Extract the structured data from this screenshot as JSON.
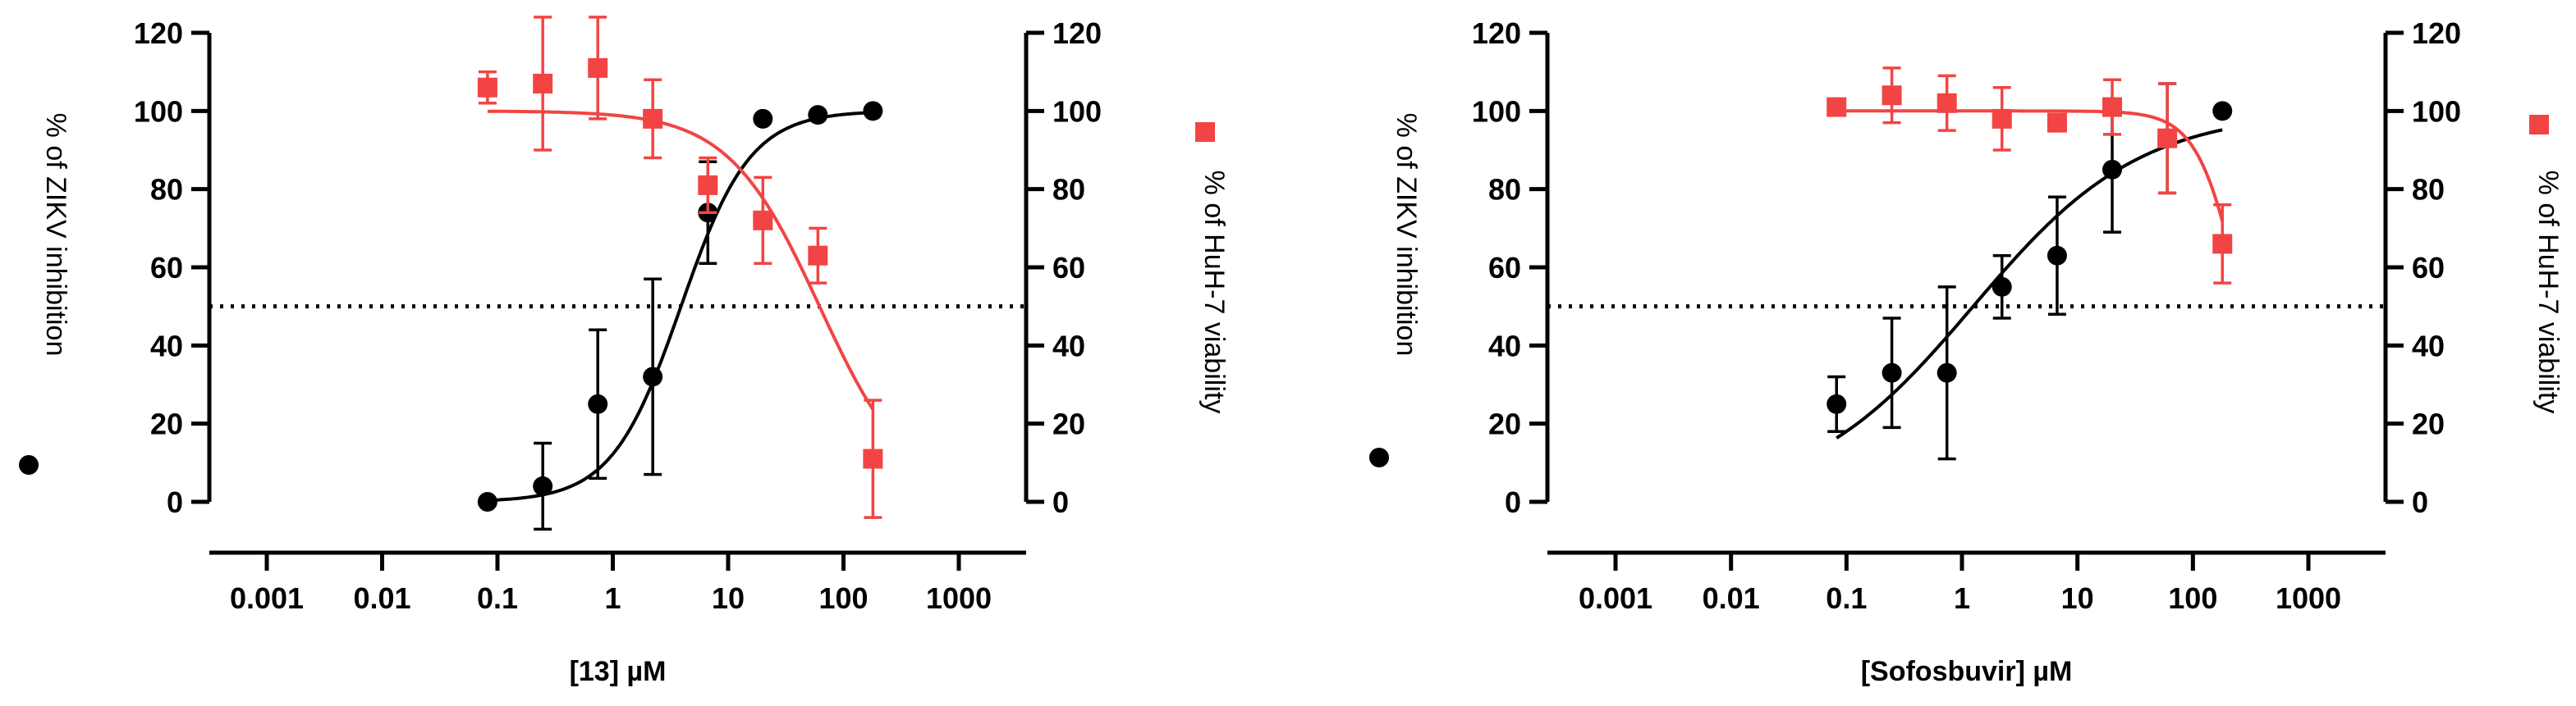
{
  "colors": {
    "inhibition": "#000000",
    "viability": "#f24444"
  },
  "chart_data": [
    {
      "type": "scatter",
      "title": "",
      "xlabel": "[13] µM",
      "xscale": "log",
      "xlim": [
        0.0002,
        2000
      ],
      "xticks": [
        0.001,
        0.01,
        0.1,
        1,
        10,
        100,
        1000
      ],
      "xtick_labels": [
        "0.001",
        "0.01",
        "0.1",
        "1",
        "10",
        "100",
        "1000"
      ],
      "ylabel_left": "% of ZIKV inhibition",
      "ylabel_right": "% of HuH-7 viability",
      "ylim": [
        0,
        120
      ],
      "yticks": [
        0,
        20,
        40,
        60,
        80,
        100,
        120
      ],
      "ytick_labels": [
        "0",
        "20",
        "40",
        "60",
        "80",
        "100",
        "120"
      ],
      "reference_line_y": 50,
      "series": [
        {
          "axis": "left",
          "marker": "circle",
          "color": "#000000",
          "x": [
            0.082,
            0.247,
            0.741,
            2.22,
            6.67,
            20,
            60,
            180
          ],
          "y": [
            0,
            4,
            25,
            32,
            74,
            98,
            99,
            100
          ],
          "err": [
            0,
            11,
            19,
            25,
            13,
            0,
            0,
            0
          ],
          "fit": {
            "bottom": 0,
            "top": 100,
            "ec50": 3.9,
            "hill": 1.45
          }
        },
        {
          "axis": "right",
          "marker": "square",
          "color": "#f24444",
          "x": [
            0.082,
            0.247,
            0.741,
            2.22,
            6.67,
            20,
            60,
            180
          ],
          "y": [
            106,
            107,
            111,
            98,
            81,
            72,
            63,
            11
          ],
          "err": [
            4,
            17,
            13,
            10,
            7,
            11,
            7,
            15
          ],
          "fit": {
            "bottom": 0,
            "top": 100,
            "ec50": 62,
            "hill": 1.1
          }
        }
      ]
    },
    {
      "type": "scatter",
      "title": "",
      "xlabel": "[Sofosbuvir] µM",
      "xscale": "log",
      "xlim": [
        0.0002,
        2000
      ],
      "xticks": [
        0.001,
        0.01,
        0.1,
        1,
        10,
        100,
        1000
      ],
      "xtick_labels": [
        "0.001",
        "0.01",
        "0.1",
        "1",
        "10",
        "100",
        "1000"
      ],
      "ylabel_left": "% of ZIKV inhibition",
      "ylabel_right": "% of HuH-7 viability",
      "ylim": [
        0,
        120
      ],
      "yticks": [
        0,
        20,
        40,
        60,
        80,
        100,
        120
      ],
      "ytick_labels": [
        "0",
        "20",
        "40",
        "60",
        "80",
        "100",
        "120"
      ],
      "reference_line_y": 50,
      "series": [
        {
          "axis": "left",
          "marker": "circle",
          "color": "#000000",
          "x": [
            0.082,
            0.247,
            0.741,
            2.22,
            6.67,
            20,
            60,
            180
          ],
          "y": [
            25,
            33,
            33,
            55,
            63,
            85,
            93,
            100
          ],
          "err": [
            7,
            14,
            22,
            8,
            15,
            16,
            14,
            0
          ],
          "fit": {
            "bottom": 0,
            "top": 100,
            "ec50": 1.25,
            "hill": 0.6
          }
        },
        {
          "axis": "right",
          "marker": "square",
          "color": "#f24444",
          "x": [
            0.082,
            0.247,
            0.741,
            2.22,
            6.67,
            20,
            60,
            180
          ],
          "y": [
            101,
            104,
            102,
            98,
            97,
            101,
            93,
            66
          ],
          "err": [
            2,
            7,
            7,
            8,
            2,
            7,
            14,
            10
          ],
          "fit": {
            "bottom": 0,
            "top": 100,
            "ec50": 270,
            "hill": 2.3
          }
        }
      ]
    }
  ]
}
